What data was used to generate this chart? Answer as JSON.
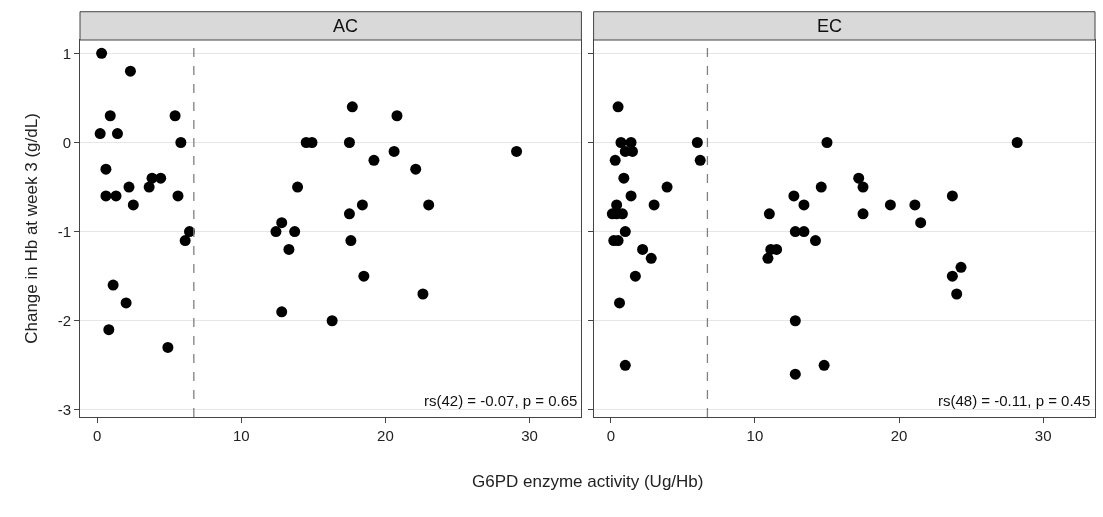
{
  "chart_data": [
    {
      "type": "scatter",
      "title": "AC",
      "xlabel": "G6PD enzyme activity (Ug/Hb)",
      "ylabel": "Change in Hb at week 3 (g/dL)",
      "x": [
        0.3,
        0.2,
        0.9,
        1.4,
        2.3,
        5.4,
        5.8,
        0.6,
        0.6,
        1.3,
        2.2,
        2.5,
        3.6,
        3.8,
        4.4,
        5.6,
        6.4,
        6.1,
        1.1,
        2.0,
        0.8,
        4.9,
        12.4,
        12.8,
        13.3,
        13.7,
        12.8,
        13.9,
        14.5,
        14.9,
        16.3,
        17.5,
        17.7,
        17.5,
        17.6,
        18.4,
        18.5,
        19.2,
        20.6,
        20.8,
        22.1,
        22.6,
        23.0,
        29.1
      ],
      "series": [
        {
          "color": "#000000",
          "values": [
            1.0,
            0.1,
            0.3,
            0.1,
            0.8,
            0.3,
            0.0,
            -0.3,
            -0.6,
            -0.6,
            -0.5,
            -0.7,
            -0.5,
            -0.4,
            -0.4,
            -0.6,
            -1.0,
            -1.1,
            -1.6,
            -1.8,
            -2.1,
            -2.3,
            -1.0,
            -0.9,
            -1.2,
            -1.0,
            -1.9,
            -0.5,
            0.0,
            0.0,
            -2.0,
            0.0,
            0.4,
            -0.8,
            -1.1,
            -0.7,
            -1.5,
            -0.2,
            -0.1,
            0.3,
            -0.3,
            -1.7,
            -0.7,
            -0.1
          ]
        }
      ],
      "xlim": [
        -1.2,
        33.6
      ],
      "xticks": [
        0,
        10,
        20,
        30
      ],
      "ylim": [
        -3.08,
        1.15
      ],
      "yticks": [
        -3,
        -2,
        -1,
        0,
        1
      ],
      "grid": "y",
      "marker": "circle",
      "ref_lines": [
        {
          "axis": "x",
          "value": 6.7,
          "color": "#808080",
          "line_style": "dashed"
        }
      ],
      "annotations": [
        "rs(42) = -0.07, p = 0.65"
      ]
    },
    {
      "type": "scatter",
      "title": "EC",
      "x": [
        0.5,
        0.7,
        1.4,
        1.0,
        1.5,
        0.3,
        6.0,
        6.2,
        0.9,
        1.4,
        0.4,
        3.9,
        3.0,
        0.1,
        0.4,
        0.8,
        1.0,
        0.2,
        0.5,
        2.2,
        2.8,
        1.7,
        0.6,
        1.0,
        10.9,
        11.0,
        11.1,
        11.5,
        12.7,
        13.4,
        12.8,
        13.4,
        14.2,
        14.6,
        15.0,
        12.8,
        12.8,
        14.8,
        17.2,
        17.5,
        17.5,
        19.4,
        21.1,
        21.5,
        23.7,
        23.7,
        24.3,
        24.0,
        28.2
      ],
      "series": [
        {
          "color": "#000000",
          "values": [
            0.4,
            0.0,
            0.0,
            -0.1,
            -0.1,
            -0.2,
            0.0,
            -0.2,
            -0.4,
            -0.6,
            -0.7,
            -0.5,
            -0.7,
            -0.8,
            -0.8,
            -0.8,
            -1.0,
            -1.1,
            -1.1,
            -1.2,
            -1.3,
            -1.5,
            -1.8,
            -2.5,
            -1.3,
            -0.8,
            -1.2,
            -1.2,
            -0.6,
            -0.7,
            -1.0,
            -1.0,
            -1.1,
            -0.5,
            0.0,
            -2.0,
            -2.6,
            -2.5,
            -0.4,
            -0.5,
            -0.8,
            -0.7,
            -0.7,
            -0.9,
            -0.6,
            -1.5,
            -1.4,
            -1.7,
            0.0
          ]
        }
      ],
      "xlim": [
        -1.2,
        33.6
      ],
      "xticks": [
        0,
        10,
        20,
        30
      ],
      "ylim": [
        -3.08,
        1.15
      ],
      "yticks": [
        -3,
        -2,
        -1,
        0,
        1
      ],
      "grid": "y",
      "marker": "circle",
      "tick_labels": "x",
      "ref_lines": [
        {
          "axis": "x",
          "value": 6.7,
          "color": "#808080",
          "line_style": "dashed"
        }
      ],
      "annotations": [
        "rs(48) = -0.11, p = 0.45"
      ]
    }
  ]
}
